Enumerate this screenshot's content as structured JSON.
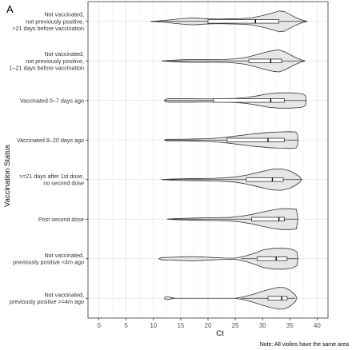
{
  "chart_data": {
    "type": "violin",
    "panel_label": "A",
    "xlabel": "Ct",
    "ylabel": "Vaccination Status",
    "note": "Note: All violins have the same area",
    "xlim": [
      -2,
      42
    ],
    "xticks": [
      0,
      5,
      10,
      15,
      20,
      25,
      30,
      35,
      40
    ],
    "grid": true,
    "fill_color": "#e6e6e6",
    "categories": [
      {
        "label": [
          "Not vaccinated,",
          "not previously positive,",
          ">21 days before vaccination"
        ],
        "box": {
          "q1": 20,
          "median": 28.7,
          "q3": 33,
          "whisker_low": 9.5,
          "whisker_high": 38.2
        },
        "density": [
          [
            9.5,
            0.0
          ],
          [
            12,
            0.08
          ],
          [
            14,
            0.18
          ],
          [
            16,
            0.27
          ],
          [
            17,
            0.3
          ],
          [
            18,
            0.28
          ],
          [
            20,
            0.22
          ],
          [
            22,
            0.2
          ],
          [
            24,
            0.22
          ],
          [
            26,
            0.24
          ],
          [
            28,
            0.3
          ],
          [
            30,
            0.5
          ],
          [
            32,
            0.75
          ],
          [
            33,
            0.9
          ],
          [
            34,
            0.85
          ],
          [
            35,
            0.6
          ],
          [
            36,
            0.35
          ],
          [
            37,
            0.15
          ],
          [
            38.2,
            0.0
          ]
        ]
      },
      {
        "label": [
          "Not vaccinated,",
          "not previously positive,",
          "1–21 days before vaccination"
        ],
        "box": {
          "q1": 27.5,
          "median": 31.5,
          "q3": 33.5,
          "whisker_low": 11.5,
          "whisker_high": 37.8
        },
        "density": [
          [
            11.5,
            0.0
          ],
          [
            13,
            0.05
          ],
          [
            15,
            0.1
          ],
          [
            17,
            0.13
          ],
          [
            19,
            0.13
          ],
          [
            21,
            0.12
          ],
          [
            23,
            0.13
          ],
          [
            25,
            0.18
          ],
          [
            27,
            0.3
          ],
          [
            29,
            0.55
          ],
          [
            31,
            0.8
          ],
          [
            32,
            0.9
          ],
          [
            33,
            0.95
          ],
          [
            34,
            0.8
          ],
          [
            35,
            0.55
          ],
          [
            36,
            0.3
          ],
          [
            37,
            0.12
          ],
          [
            37.8,
            0.0
          ]
        ]
      },
      {
        "label": [
          "Vaccinated 0–7 days ago"
        ],
        "box": {
          "q1": 21,
          "median": 31.5,
          "q3": 34,
          "whisker_low": 12,
          "whisker_high": 38
        },
        "density": [
          [
            12,
            0.0
          ],
          [
            12.2,
            0.12
          ],
          [
            13,
            0.15
          ],
          [
            15,
            0.15
          ],
          [
            17,
            0.15
          ],
          [
            19,
            0.14
          ],
          [
            21,
            0.14
          ],
          [
            23,
            0.15
          ],
          [
            25,
            0.18
          ],
          [
            27,
            0.25
          ],
          [
            29,
            0.4
          ],
          [
            31,
            0.58
          ],
          [
            33,
            0.66
          ],
          [
            35,
            0.66
          ],
          [
            36.5,
            0.62
          ],
          [
            37.5,
            0.55
          ],
          [
            37.9,
            0.4
          ],
          [
            38,
            0.0
          ]
        ]
      },
      {
        "label": [
          "Vaccinated 8–20 days ago"
        ],
        "box": {
          "q1": 23.5,
          "median": 31,
          "q3": 34,
          "whisker_low": 12,
          "whisker_high": 36.5
        },
        "density": [
          [
            12,
            0.0
          ],
          [
            12.3,
            0.06
          ],
          [
            14,
            0.07
          ],
          [
            16,
            0.08
          ],
          [
            18,
            0.1
          ],
          [
            20,
            0.12
          ],
          [
            22,
            0.18
          ],
          [
            24,
            0.28
          ],
          [
            26,
            0.4
          ],
          [
            28,
            0.52
          ],
          [
            30,
            0.6
          ],
          [
            31,
            0.65
          ],
          [
            33,
            0.7
          ],
          [
            35,
            0.72
          ],
          [
            36.1,
            0.7
          ],
          [
            36.4,
            0.5
          ],
          [
            36.5,
            0.0
          ]
        ]
      },
      {
        "label": [
          ">=21 days after 1st dose,",
          "no second dose"
        ],
        "box": {
          "q1": 27,
          "median": 31.8,
          "q3": 33.8,
          "whisker_low": 11.5,
          "whisker_high": 37.2
        },
        "density": [
          [
            11.5,
            0.0
          ],
          [
            13,
            0.04
          ],
          [
            15,
            0.07
          ],
          [
            17,
            0.09
          ],
          [
            19,
            0.1
          ],
          [
            21,
            0.11
          ],
          [
            23,
            0.15
          ],
          [
            25,
            0.22
          ],
          [
            27,
            0.38
          ],
          [
            29,
            0.6
          ],
          [
            31,
            0.82
          ],
          [
            32,
            0.9
          ],
          [
            33.5,
            0.92
          ],
          [
            35,
            0.75
          ],
          [
            36,
            0.5
          ],
          [
            36.8,
            0.25
          ],
          [
            37.2,
            0.0
          ]
        ]
      },
      {
        "label": [
          "Post second dose"
        ],
        "box": {
          "q1": 28,
          "median": 33,
          "q3": 34,
          "whisker_low": 12.5,
          "whisker_high": 36.5
        },
        "density": [
          [
            12.5,
            0.0
          ],
          [
            14,
            0.05
          ],
          [
            16,
            0.08
          ],
          [
            18,
            0.1
          ],
          [
            20,
            0.12
          ],
          [
            22,
            0.13
          ],
          [
            24,
            0.15
          ],
          [
            26,
            0.25
          ],
          [
            28,
            0.4
          ],
          [
            30,
            0.62
          ],
          [
            32,
            0.8
          ],
          [
            33.5,
            0.9
          ],
          [
            35,
            0.9
          ],
          [
            36.2,
            0.85
          ],
          [
            36.5,
            0.0
          ]
        ]
      },
      {
        "label": [
          "Not vaccinated,",
          "previously positive <4m ago"
        ],
        "box": {
          "q1": 29,
          "median": 32.5,
          "q3": 34.5,
          "whisker_low": 26,
          "whisker_high": 36.5
        },
        "density": [
          [
            11,
            0.0
          ],
          [
            11.5,
            0.1
          ],
          [
            13,
            0.12
          ],
          [
            15,
            0.15
          ],
          [
            17,
            0.18
          ],
          [
            19,
            0.15
          ],
          [
            21,
            0.1
          ],
          [
            23,
            0.06
          ],
          [
            25,
            0.05
          ],
          [
            27,
            0.25
          ],
          [
            29,
            0.55
          ],
          [
            30,
            0.75
          ],
          [
            32,
            0.9
          ],
          [
            34,
            0.9
          ],
          [
            35.5,
            0.8
          ],
          [
            36.3,
            0.6
          ],
          [
            36.5,
            0.0
          ]
        ]
      },
      {
        "label": [
          "Not vaccinated,",
          "previously positive >=4m ago"
        ],
        "box": {
          "q1": 31,
          "median": 33.5,
          "q3": 34.5,
          "whisker_low": 26,
          "whisker_high": 36
        },
        "density": [
          [
            12,
            0.0
          ],
          [
            12.2,
            0.12
          ],
          [
            13,
            0.09
          ],
          [
            13.5,
            0.03
          ],
          [
            14,
            0.0
          ],
          [
            25,
            0.0
          ],
          [
            26.5,
            0.12
          ],
          [
            28,
            0.3
          ],
          [
            30,
            0.6
          ],
          [
            31.5,
            0.8
          ],
          [
            33,
            0.95
          ],
          [
            34,
            0.92
          ],
          [
            35,
            0.7
          ],
          [
            36,
            0.3
          ],
          [
            36.3,
            0.0
          ]
        ]
      }
    ]
  }
}
